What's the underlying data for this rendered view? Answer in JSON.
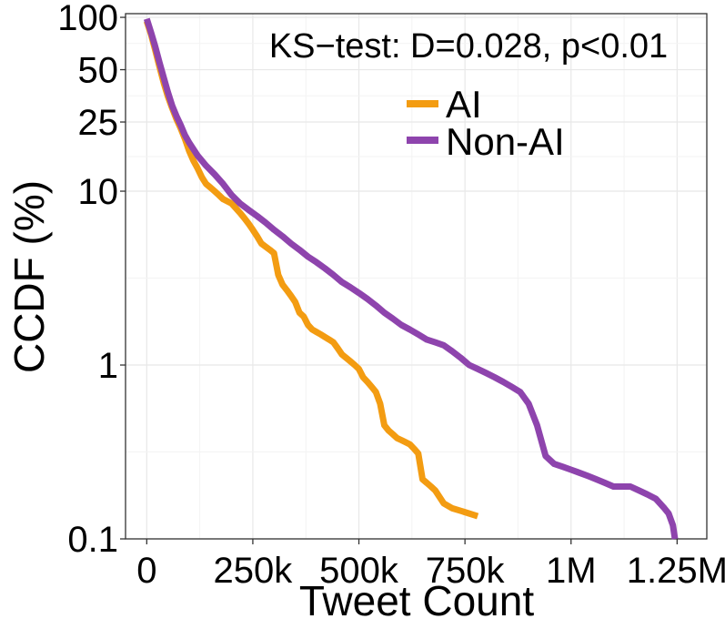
{
  "chart_data": {
    "type": "line",
    "title": "",
    "xlabel": "Tweet Count",
    "ylabel": "CCDF (%)",
    "xlim": [
      -50000,
      1320000
    ],
    "ylim": [
      0.1,
      105
    ],
    "y_scale": "log",
    "grid": true,
    "x_ticks": [
      {
        "value": 0,
        "label": "0"
      },
      {
        "value": 250000,
        "label": "250k"
      },
      {
        "value": 500000,
        "label": "500k"
      },
      {
        "value": 750000,
        "label": "750k"
      },
      {
        "value": 1000000,
        "label": "1M"
      },
      {
        "value": 1250000,
        "label": "1.25M"
      }
    ],
    "y_ticks": [
      {
        "value": 100,
        "label": "100"
      },
      {
        "value": 50,
        "label": "50"
      },
      {
        "value": 25,
        "label": "25"
      },
      {
        "value": 10,
        "label": "10"
      },
      {
        "value": 1,
        "label": "1"
      },
      {
        "value": 0.1,
        "label": "0.1"
      }
    ],
    "annotation": "KS−test: D=0.028, p<0.01",
    "legend_position": "top-right",
    "series": [
      {
        "name": "AI",
        "color": "#F39C12",
        "x": [
          0,
          10000,
          20000,
          30000,
          40000,
          50000,
          60000,
          70000,
          80000,
          90000,
          100000,
          110000,
          120000,
          130000,
          140000,
          150000,
          160000,
          170000,
          180000,
          200000,
          220000,
          230000,
          240000,
          250000,
          260000,
          270000,
          280000,
          290000,
          300000,
          310000,
          320000,
          330000,
          340000,
          350000,
          360000,
          370000,
          380000,
          390000,
          400000,
          410000,
          420000,
          430000,
          440000,
          450000,
          460000,
          470000,
          480000,
          490000,
          500000,
          510000,
          520000,
          530000,
          540000,
          550000,
          560000,
          570000,
          580000,
          590000,
          600000,
          610000,
          620000,
          630000,
          640000,
          650000,
          660000,
          670000,
          680000,
          700000,
          720000,
          740000,
          760000,
          780000
        ],
        "y": [
          95,
          80,
          65,
          52,
          42,
          35,
          30,
          26,
          23,
          20,
          17,
          15,
          13.5,
          12,
          11,
          10.5,
          10,
          9.5,
          9,
          8.5,
          7.5,
          7,
          6.5,
          6,
          5.5,
          5,
          4.8,
          4.6,
          4.4,
          3.3,
          2.9,
          2.7,
          2.5,
          2.3,
          2,
          1.9,
          1.7,
          1.6,
          1.55,
          1.5,
          1.45,
          1.4,
          1.35,
          1.25,
          1.15,
          1.1,
          1.05,
          1,
          0.95,
          0.85,
          0.8,
          0.75,
          0.7,
          0.6,
          0.45,
          0.42,
          0.4,
          0.38,
          0.37,
          0.36,
          0.35,
          0.33,
          0.31,
          0.22,
          0.21,
          0.2,
          0.19,
          0.16,
          0.15,
          0.145,
          0.14,
          0.135
        ]
      },
      {
        "name": "Non-AI",
        "color": "#8E44AD",
        "x": [
          0,
          10000,
          20000,
          30000,
          40000,
          50000,
          60000,
          70000,
          80000,
          90000,
          100000,
          120000,
          140000,
          160000,
          180000,
          200000,
          220000,
          240000,
          260000,
          280000,
          300000,
          320000,
          340000,
          360000,
          380000,
          400000,
          420000,
          440000,
          460000,
          480000,
          500000,
          520000,
          540000,
          560000,
          580000,
          600000,
          620000,
          640000,
          660000,
          680000,
          700000,
          720000,
          740000,
          760000,
          780000,
          800000,
          820000,
          840000,
          860000,
          880000,
          900000,
          920000,
          940000,
          960000,
          980000,
          1000000,
          1020000,
          1040000,
          1060000,
          1080000,
          1100000,
          1120000,
          1140000,
          1160000,
          1180000,
          1200000,
          1220000,
          1230000,
          1240000,
          1245000
        ],
        "y": [
          98,
          82,
          68,
          55,
          45,
          37,
          31,
          27,
          24,
          21,
          19,
          16,
          14,
          12.5,
          11,
          9.5,
          8.5,
          7.8,
          7.2,
          6.6,
          6,
          5.5,
          5,
          4.6,
          4.2,
          3.9,
          3.6,
          3.3,
          3,
          2.8,
          2.6,
          2.4,
          2.2,
          2,
          1.85,
          1.7,
          1.6,
          1.5,
          1.4,
          1.35,
          1.3,
          1.2,
          1.1,
          1.0,
          0.95,
          0.9,
          0.85,
          0.8,
          0.75,
          0.7,
          0.6,
          0.45,
          0.3,
          0.27,
          0.26,
          0.25,
          0.24,
          0.23,
          0.22,
          0.21,
          0.2,
          0.2,
          0.2,
          0.19,
          0.18,
          0.17,
          0.15,
          0.14,
          0.12,
          0.1
        ]
      }
    ]
  }
}
